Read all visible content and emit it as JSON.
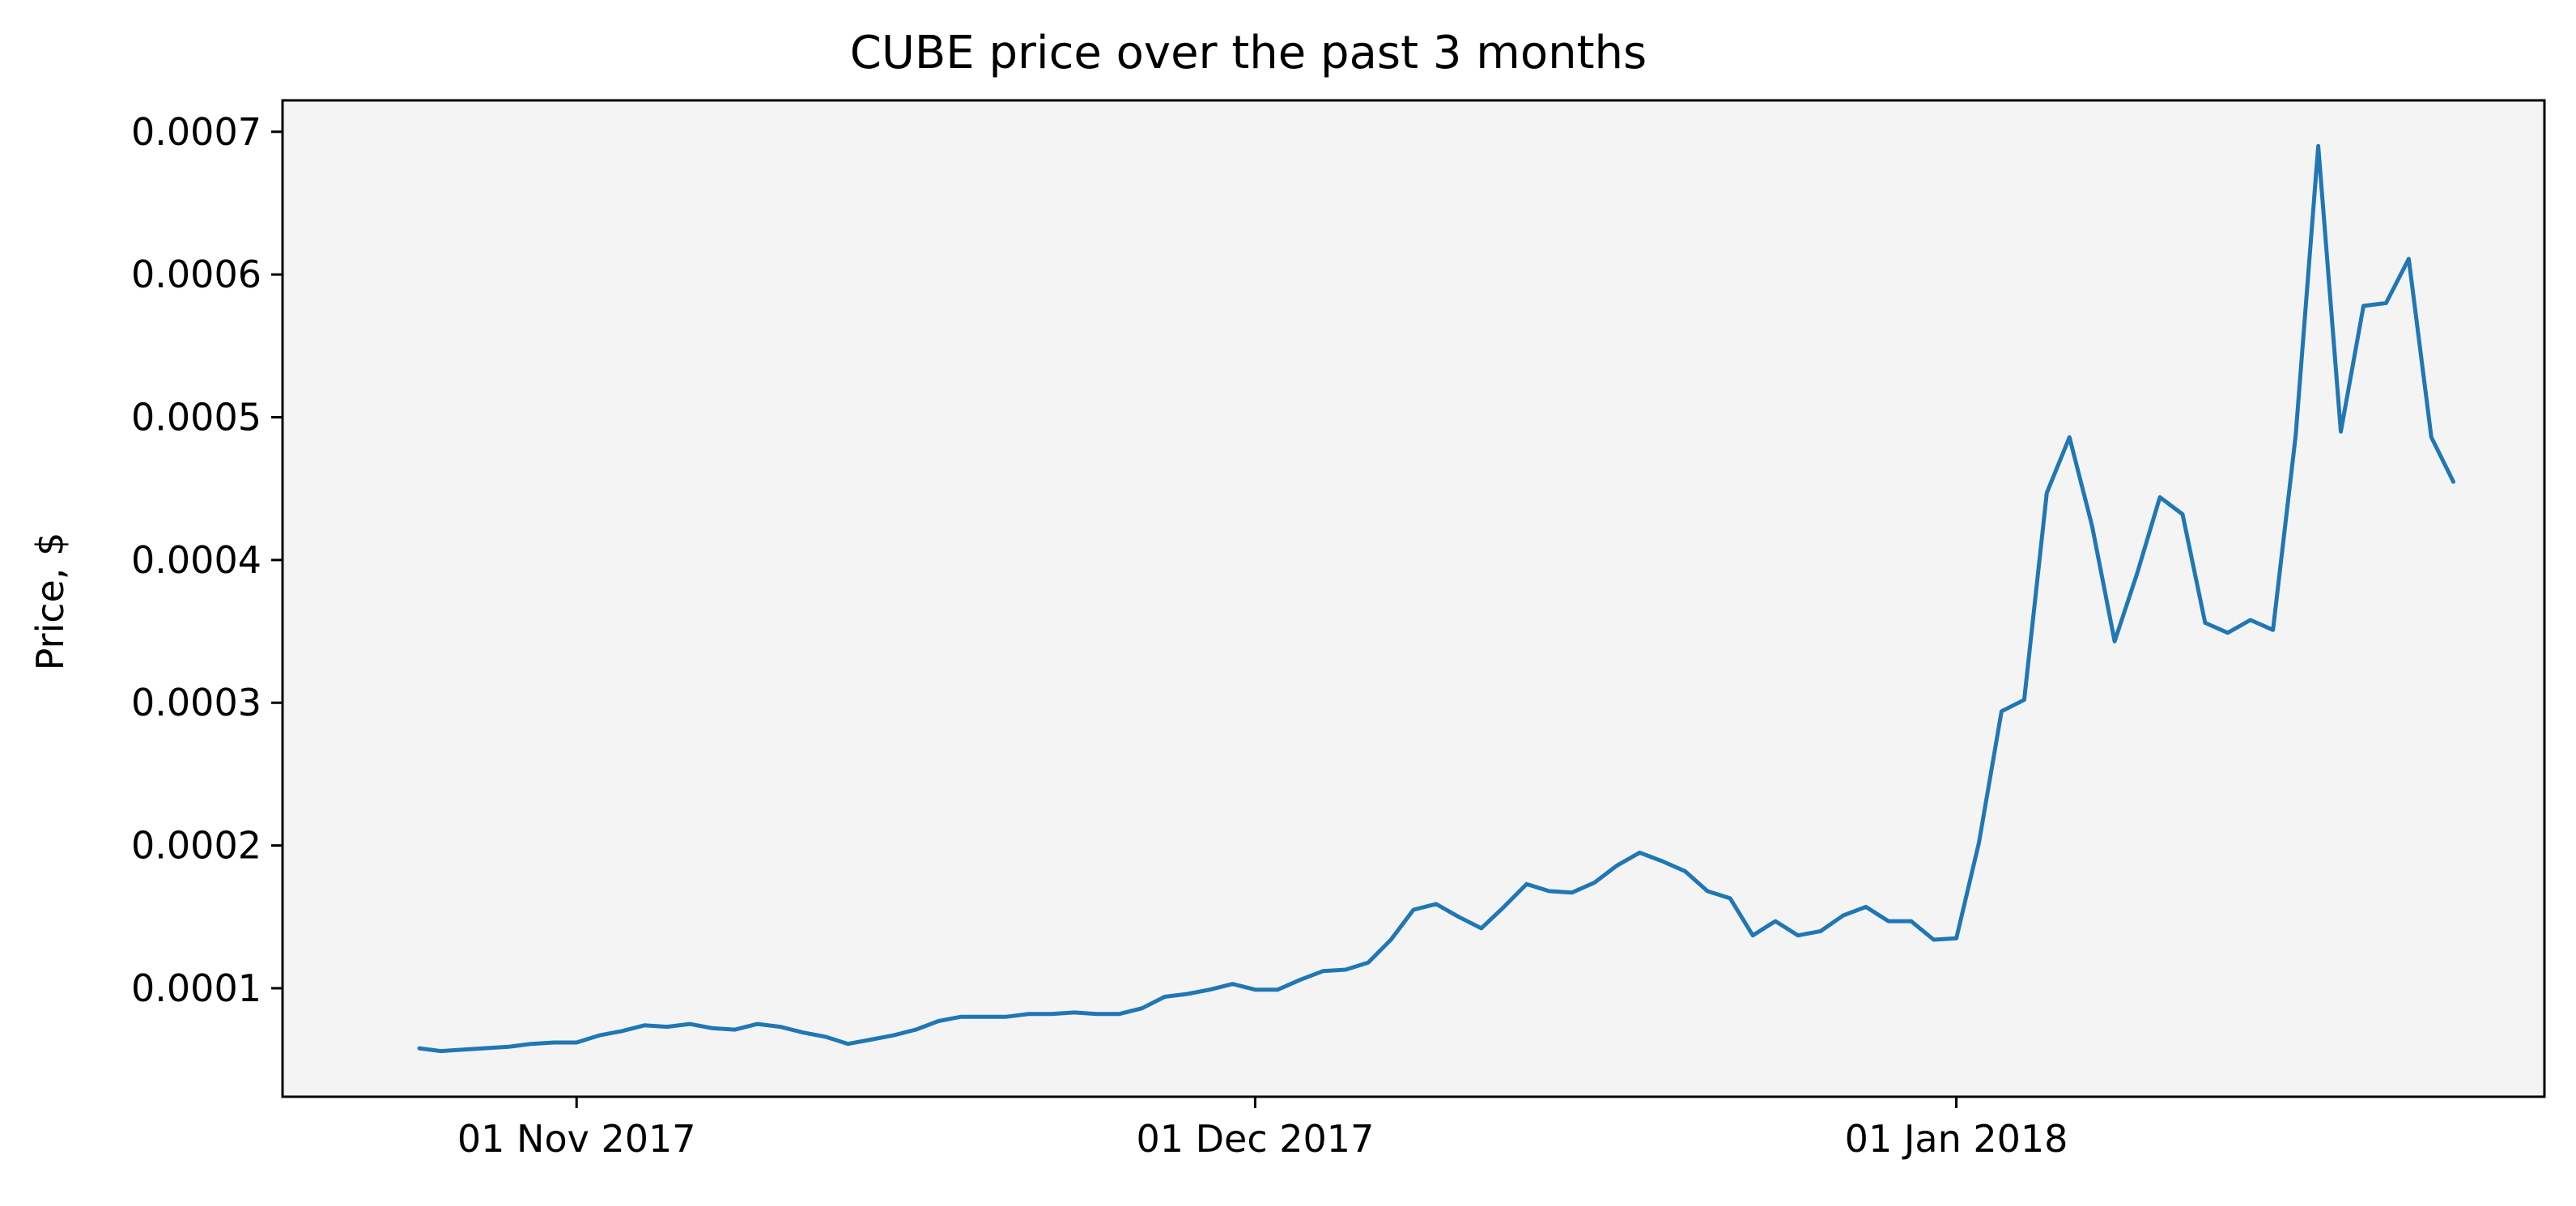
{
  "chart_data": {
    "type": "line",
    "title": "CUBE price over the past 3 months",
    "xlabel": "",
    "ylabel": "Price, $",
    "xlim": [
      "2017-10-19",
      "2018-01-27"
    ],
    "ylim": [
      2.4e-05,
      0.000722
    ],
    "x_ticks": [
      {
        "date": "2017-11-01",
        "label": "01 Nov 2017"
      },
      {
        "date": "2017-12-01",
        "label": "01 Dec 2017"
      },
      {
        "date": "2018-01-01",
        "label": "01 Jan 2018"
      }
    ],
    "y_ticks": [
      {
        "value": 0.0001,
        "label": "0.0001"
      },
      {
        "value": 0.0002,
        "label": "0.0002"
      },
      {
        "value": 0.0003,
        "label": "0.0003"
      },
      {
        "value": 0.0004,
        "label": "0.0004"
      },
      {
        "value": 0.0005,
        "label": "0.0005"
      },
      {
        "value": 0.0006,
        "label": "0.0006"
      },
      {
        "value": 0.0007,
        "label": "0.0007"
      }
    ],
    "grid": false,
    "plot_background": "#f4f4f4",
    "series": [
      {
        "color": "#1f77b4",
        "points": [
          [
            "2017-10-25",
            5.8e-05
          ],
          [
            "2017-10-26",
            5.6e-05
          ],
          [
            "2017-10-27",
            5.7e-05
          ],
          [
            "2017-10-28",
            5.8e-05
          ],
          [
            "2017-10-29",
            5.9e-05
          ],
          [
            "2017-10-30",
            6.1e-05
          ],
          [
            "2017-10-31",
            6.2e-05
          ],
          [
            "2017-11-01",
            6.2e-05
          ],
          [
            "2017-11-02",
            6.7e-05
          ],
          [
            "2017-11-03",
            7e-05
          ],
          [
            "2017-11-04",
            7.4e-05
          ],
          [
            "2017-11-05",
            7.3e-05
          ],
          [
            "2017-11-06",
            7.5e-05
          ],
          [
            "2017-11-07",
            7.2e-05
          ],
          [
            "2017-11-08",
            7.1e-05
          ],
          [
            "2017-11-09",
            7.5e-05
          ],
          [
            "2017-11-10",
            7.3e-05
          ],
          [
            "2017-11-11",
            6.9e-05
          ],
          [
            "2017-11-12",
            6.6e-05
          ],
          [
            "2017-11-13",
            6.1e-05
          ],
          [
            "2017-11-14",
            6.4e-05
          ],
          [
            "2017-11-15",
            6.7e-05
          ],
          [
            "2017-11-16",
            7.1e-05
          ],
          [
            "2017-11-17",
            7.7e-05
          ],
          [
            "2017-11-18",
            8e-05
          ],
          [
            "2017-11-19",
            8e-05
          ],
          [
            "2017-11-20",
            8e-05
          ],
          [
            "2017-11-21",
            8.2e-05
          ],
          [
            "2017-11-22",
            8.2e-05
          ],
          [
            "2017-11-23",
            8.3e-05
          ],
          [
            "2017-11-24",
            8.2e-05
          ],
          [
            "2017-11-25",
            8.2e-05
          ],
          [
            "2017-11-26",
            8.6e-05
          ],
          [
            "2017-11-27",
            9.4e-05
          ],
          [
            "2017-11-28",
            9.6e-05
          ],
          [
            "2017-11-29",
            9.9e-05
          ],
          [
            "2017-11-30",
            0.000103
          ],
          [
            "2017-12-01",
            9.9e-05
          ],
          [
            "2017-12-02",
            9.9e-05
          ],
          [
            "2017-12-03",
            0.000106
          ],
          [
            "2017-12-04",
            0.000112
          ],
          [
            "2017-12-05",
            0.000113
          ],
          [
            "2017-12-06",
            0.000118
          ],
          [
            "2017-12-07",
            0.000134
          ],
          [
            "2017-12-08",
            0.000155
          ],
          [
            "2017-12-09",
            0.000159
          ],
          [
            "2017-12-10",
            0.00015
          ],
          [
            "2017-12-11",
            0.000142
          ],
          [
            "2017-12-12",
            0.000157
          ],
          [
            "2017-12-13",
            0.000173
          ],
          [
            "2017-12-14",
            0.000168
          ],
          [
            "2017-12-15",
            0.000167
          ],
          [
            "2017-12-16",
            0.000174
          ],
          [
            "2017-12-17",
            0.000186
          ],
          [
            "2017-12-18",
            0.000195
          ],
          [
            "2017-12-19",
            0.000189
          ],
          [
            "2017-12-20",
            0.000182
          ],
          [
            "2017-12-21",
            0.000168
          ],
          [
            "2017-12-22",
            0.000163
          ],
          [
            "2017-12-23",
            0.000137
          ],
          [
            "2017-12-24",
            0.000147
          ],
          [
            "2017-12-25",
            0.000137
          ],
          [
            "2017-12-26",
            0.00014
          ],
          [
            "2017-12-27",
            0.000151
          ],
          [
            "2017-12-28",
            0.000157
          ],
          [
            "2017-12-29",
            0.000147
          ],
          [
            "2017-12-30",
            0.000147
          ],
          [
            "2017-12-31",
            0.000134
          ],
          [
            "2018-01-01",
            0.000135
          ],
          [
            "2018-01-02",
            0.000202
          ],
          [
            "2018-01-03",
            0.000294
          ],
          [
            "2018-01-04",
            0.000302
          ],
          [
            "2018-01-05",
            0.000447
          ],
          [
            "2018-01-06",
            0.000486
          ],
          [
            "2018-01-07",
            0.000424
          ],
          [
            "2018-01-08",
            0.000343
          ],
          [
            "2018-01-09",
            0.000391
          ],
          [
            "2018-01-10",
            0.000444
          ],
          [
            "2018-01-11",
            0.000432
          ],
          [
            "2018-01-12",
            0.000356
          ],
          [
            "2018-01-13",
            0.000349
          ],
          [
            "2018-01-14",
            0.000358
          ],
          [
            "2018-01-15",
            0.000351
          ],
          [
            "2018-01-16",
            0.000487
          ],
          [
            "2018-01-17",
            0.00069
          ],
          [
            "2018-01-18",
            0.00049
          ],
          [
            "2018-01-19",
            0.000578
          ],
          [
            "2018-01-20",
            0.00058
          ],
          [
            "2018-01-21",
            0.000611
          ],
          [
            "2018-01-22",
            0.000486
          ],
          [
            "2018-01-23",
            0.000454
          ]
        ]
      }
    ]
  }
}
